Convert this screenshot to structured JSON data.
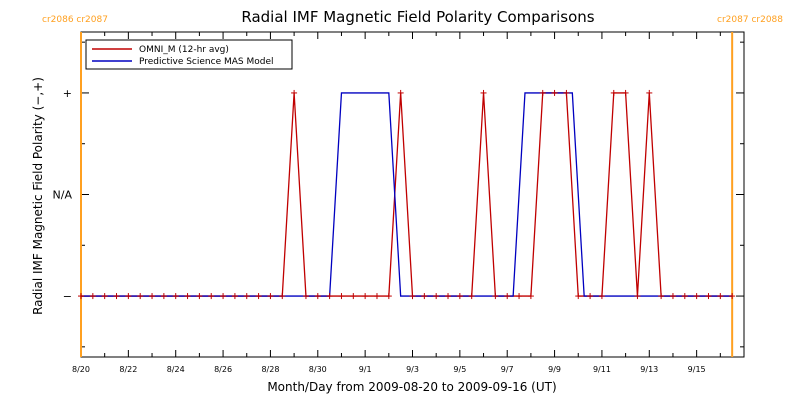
{
  "chart_data": {
    "type": "line",
    "title": "Radial IMF Magnetic Field Polarity Comparisons",
    "xlabel": "Month/Day from 2009-08-20 to 2009-09-16 (UT)",
    "ylabel": "Radial IMF Magnetic Field Polarity (−,+)",
    "x_unit": "date",
    "xlim": [
      "2009-08-20",
      "2009-09-17"
    ],
    "x_tick_labels": [
      "8/20",
      "8/22",
      "8/24",
      "8/26",
      "8/28",
      "8/30",
      "9/1",
      "9/3",
      "9/5",
      "9/7",
      "9/9",
      "9/11",
      "9/13",
      "9/15"
    ],
    "y_categories": [
      "−",
      "N/A",
      "+"
    ],
    "y_tick_labels": [
      "+",
      "N/A",
      "−"
    ],
    "ylim": [
      -1.6,
      1.6
    ],
    "carrington_markers": [
      {
        "date": "2009-08-20",
        "label": "cr2086 cr2087",
        "position": "left"
      },
      {
        "date": "2009-09-16T12:00",
        "label": "cr2087 cr2088",
        "position": "right"
      }
    ],
    "marker_color": "#ffa020",
    "legend": {
      "placement": "top-left",
      "entries": [
        "OMNI_M (12-hr avg)",
        "Predictive Science MAS Model"
      ]
    },
    "series": [
      {
        "name": "OMNI_M (12-hr avg)",
        "color": "#c00000",
        "marker": "+",
        "x": [
          "2009-08-20T00:00",
          "2009-08-20T12:00",
          "2009-08-21T00:00",
          "2009-08-21T12:00",
          "2009-08-22T00:00",
          "2009-08-22T12:00",
          "2009-08-23T00:00",
          "2009-08-23T12:00",
          "2009-08-24T00:00",
          "2009-08-24T12:00",
          "2009-08-25T00:00",
          "2009-08-25T12:00",
          "2009-08-26T00:00",
          "2009-08-26T12:00",
          "2009-08-27T00:00",
          "2009-08-27T12:00",
          "2009-08-28T00:00",
          "2009-08-28T12:00",
          "2009-08-29T00:00",
          "2009-08-29T12:00",
          "2009-08-30T00:00",
          "2009-08-30T12:00",
          "2009-08-31T00:00",
          "2009-08-31T12:00",
          "2009-09-01T00:00",
          "2009-09-01T12:00",
          "2009-09-02T00:00",
          "2009-09-02T12:00",
          "2009-09-03T00:00",
          "2009-09-03T12:00",
          "2009-09-04T00:00",
          "2009-09-04T12:00",
          "2009-09-05T00:00",
          "2009-09-05T12:00",
          "2009-09-06T00:00",
          "2009-09-06T12:00",
          "2009-09-07T00:00",
          "2009-09-07T12:00",
          "2009-09-08T00:00",
          "2009-09-08T12:00",
          "2009-09-09T00:00",
          "2009-09-09T12:00",
          "2009-09-10T00:00",
          "2009-09-10T12:00",
          "2009-09-11T00:00",
          "2009-09-11T12:00",
          "2009-09-12T00:00",
          "2009-09-12T12:00",
          "2009-09-13T00:00",
          "2009-09-13T12:00",
          "2009-09-14T00:00",
          "2009-09-14T12:00",
          "2009-09-15T00:00",
          "2009-09-15T12:00",
          "2009-09-16T00:00",
          "2009-09-16T12:00"
        ],
        "values": [
          -1,
          -1,
          -1,
          -1,
          -1,
          -1,
          -1,
          -1,
          -1,
          -1,
          -1,
          -1,
          -1,
          -1,
          -1,
          -1,
          -1,
          -1,
          1,
          -1,
          -1,
          -1,
          -1,
          -1,
          -1,
          -1,
          -1,
          1,
          -1,
          -1,
          -1,
          -1,
          -1,
          -1,
          1,
          -1,
          -1,
          -1,
          -1,
          1,
          1,
          1,
          -1,
          -1,
          -1,
          1,
          1,
          -1,
          1,
          -1,
          -1,
          -1,
          -1,
          -1,
          -1,
          -1
        ]
      },
      {
        "name": "Predictive Science MAS Model",
        "color": "#0000c0",
        "x": [
          "2009-08-20T00:00",
          "2009-08-30T12:00",
          "2009-08-31T00:00",
          "2009-09-02T00:00",
          "2009-09-02T12:00",
          "2009-09-07T06:00",
          "2009-09-07T18:00",
          "2009-09-09T18:00",
          "2009-09-10T06:00",
          "2009-09-16T12:00"
        ],
        "values": [
          -1,
          -1,
          1,
          1,
          -1,
          -1,
          1,
          1,
          -1,
          -1
        ]
      }
    ]
  }
}
